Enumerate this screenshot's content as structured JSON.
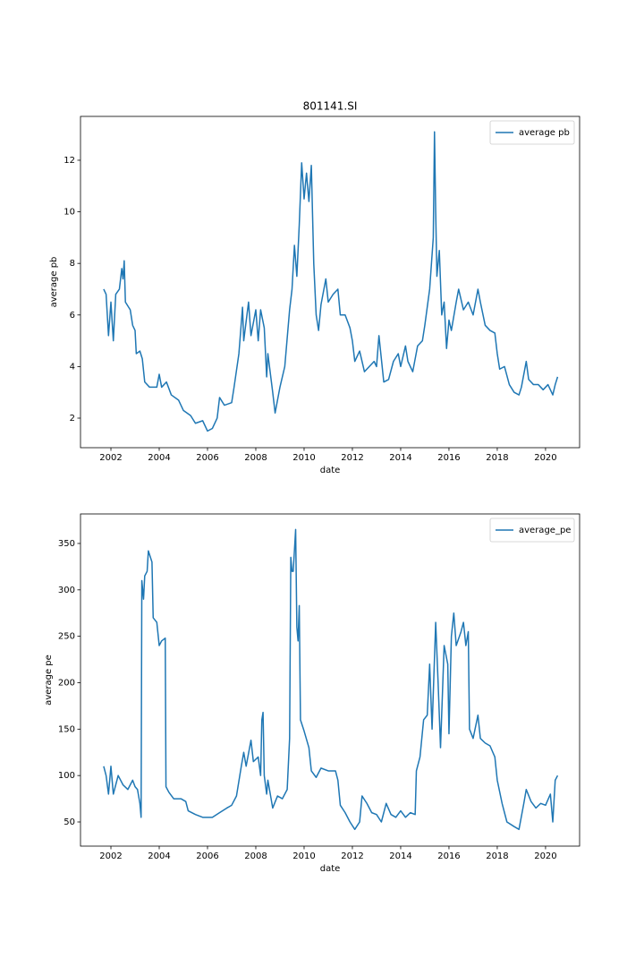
{
  "chart_data": [
    {
      "type": "line",
      "title": "801141.SI",
      "xlabel": "date",
      "ylabel": "average pb",
      "legend": "upper right",
      "x": [
        2001.7,
        2001.8,
        2001.9,
        2002.0,
        2002.1,
        2002.2,
        2002.35,
        2002.45,
        2002.5,
        2002.55,
        2002.6,
        2002.8,
        2002.9,
        2003.0,
        2003.05,
        2003.2,
        2003.3,
        2003.4,
        2003.6,
        2003.9,
        2004.0,
        2004.1,
        2004.3,
        2004.5,
        2004.8,
        2005.0,
        2005.3,
        2005.5,
        2005.8,
        2006.0,
        2006.2,
        2006.4,
        2006.5,
        2006.7,
        2007.0,
        2007.1,
        2007.3,
        2007.45,
        2007.5,
        2007.7,
        2007.8,
        2008.0,
        2008.1,
        2008.2,
        2008.35,
        2008.45,
        2008.5,
        2008.7,
        2008.8,
        2009.0,
        2009.2,
        2009.4,
        2009.5,
        2009.6,
        2009.7,
        2009.8,
        2009.9,
        2010.0,
        2010.1,
        2010.2,
        2010.3,
        2010.4,
        2010.5,
        2010.6,
        2010.7,
        2010.9,
        2011.0,
        2011.2,
        2011.4,
        2011.5,
        2011.7,
        2011.9,
        2012.0,
        2012.1,
        2012.3,
        2012.5,
        2012.7,
        2012.9,
        2013.0,
        2013.1,
        2013.3,
        2013.5,
        2013.7,
        2013.9,
        2014.0,
        2014.2,
        2014.3,
        2014.5,
        2014.7,
        2014.9,
        2015.0,
        2015.2,
        2015.35,
        2015.4,
        2015.45,
        2015.5,
        2015.6,
        2015.7,
        2015.8,
        2015.9,
        2016.0,
        2016.1,
        2016.3,
        2016.4,
        2016.6,
        2016.8,
        2017.0,
        2017.2,
        2017.3,
        2017.5,
        2017.7,
        2017.9,
        2018.0,
        2018.1,
        2018.3,
        2018.5,
        2018.7,
        2018.9,
        2019.0,
        2019.2,
        2019.3,
        2019.5,
        2019.7,
        2019.9,
        2020.1,
        2020.3,
        2020.4,
        2020.5
      ],
      "series": [
        {
          "name": "average pb",
          "color": "#1f77b4",
          "values": [
            7.0,
            6.8,
            5.2,
            6.5,
            5.0,
            6.8,
            7.0,
            7.8,
            7.4,
            8.1,
            6.5,
            6.2,
            5.6,
            5.4,
            4.5,
            4.6,
            4.3,
            3.4,
            3.2,
            3.2,
            3.7,
            3.2,
            3.4,
            2.9,
            2.7,
            2.3,
            2.1,
            1.8,
            1.9,
            1.5,
            1.6,
            2.0,
            2.8,
            2.5,
            2.6,
            3.2,
            4.5,
            6.3,
            5.0,
            6.5,
            5.2,
            6.2,
            5.0,
            6.2,
            5.5,
            3.6,
            4.5,
            3.0,
            2.2,
            3.2,
            4.0,
            6.2,
            7.0,
            8.7,
            7.5,
            9.5,
            11.9,
            10.5,
            11.5,
            10.4,
            11.8,
            8.0,
            6.0,
            5.4,
            6.4,
            7.4,
            6.5,
            6.8,
            7.0,
            6.0,
            6.0,
            5.5,
            5.0,
            4.2,
            4.6,
            3.8,
            4.0,
            4.2,
            4.0,
            5.2,
            3.4,
            3.5,
            4.2,
            4.5,
            4.0,
            4.8,
            4.2,
            3.8,
            4.8,
            5.0,
            5.6,
            7.0,
            9.0,
            13.1,
            10.0,
            7.5,
            8.5,
            6.0,
            6.5,
            4.7,
            5.8,
            5.4,
            6.5,
            7.0,
            6.2,
            6.5,
            6.0,
            7.0,
            6.5,
            5.6,
            5.4,
            5.3,
            4.5,
            3.9,
            4.0,
            3.3,
            3.0,
            2.9,
            3.2,
            4.2,
            3.5,
            3.3,
            3.3,
            3.1,
            3.3,
            2.9,
            3.3,
            3.6
          ]
        }
      ],
      "xlim": [
        2000.74,
        2021.41
      ],
      "ylim": [
        0.854,
        13.7
      ],
      "xticks": [
        2002,
        2004,
        2006,
        2008,
        2010,
        2012,
        2014,
        2016,
        2018,
        2020
      ],
      "yticks": [
        2,
        4,
        6,
        8,
        10,
        12
      ]
    },
    {
      "type": "line",
      "xlabel": "date",
      "ylabel": "average pe",
      "legend": "upper right",
      "x": [
        2001.7,
        2001.8,
        2001.9,
        2002.0,
        2002.1,
        2002.3,
        2002.5,
        2002.7,
        2002.9,
        2003.0,
        2003.1,
        2003.2,
        2003.25,
        2003.28,
        2003.35,
        2003.4,
        2003.5,
        2003.55,
        2003.7,
        2003.75,
        2003.9,
        2004.0,
        2004.1,
        2004.25,
        2004.28,
        2004.4,
        2004.6,
        2004.9,
        2005.1,
        2005.2,
        2005.5,
        2005.8,
        2006.2,
        2006.5,
        2006.8,
        2007.0,
        2007.2,
        2007.4,
        2007.5,
        2007.6,
        2007.8,
        2007.9,
        2008.1,
        2008.2,
        2008.25,
        2008.3,
        2008.35,
        2008.45,
        2008.5,
        2008.7,
        2008.9,
        2009.1,
        2009.3,
        2009.4,
        2009.45,
        2009.5,
        2009.55,
        2009.65,
        2009.7,
        2009.75,
        2009.8,
        2009.85,
        2010.0,
        2010.2,
        2010.3,
        2010.5,
        2010.7,
        2011.0,
        2011.3,
        2011.4,
        2011.5,
        2011.7,
        2011.9,
        2012.1,
        2012.3,
        2012.4,
        2012.6,
        2012.8,
        2013.0,
        2013.2,
        2013.4,
        2013.6,
        2013.8,
        2014.0,
        2014.2,
        2014.4,
        2014.6,
        2014.65,
        2014.8,
        2014.95,
        2015.1,
        2015.2,
        2015.3,
        2015.45,
        2015.55,
        2015.65,
        2015.8,
        2015.95,
        2016.0,
        2016.1,
        2016.2,
        2016.3,
        2016.5,
        2016.6,
        2016.7,
        2016.8,
        2016.85,
        2017.0,
        2017.2,
        2017.3,
        2017.5,
        2017.7,
        2017.9,
        2018.0,
        2018.2,
        2018.4,
        2018.7,
        2018.9,
        2019.1,
        2019.2,
        2019.4,
        2019.6,
        2019.8,
        2020.0,
        2020.2,
        2020.3,
        2020.4,
        2020.5
      ],
      "series": [
        {
          "name": "average_pe",
          "color": "#1f77b4",
          "values": [
            110,
            100,
            80,
            110,
            80,
            100,
            90,
            85,
            95,
            88,
            85,
            70,
            55,
            310,
            290,
            315,
            320,
            342,
            330,
            270,
            265,
            240,
            245,
            248,
            88,
            82,
            75,
            75,
            72,
            62,
            58,
            55,
            55,
            60,
            65,
            68,
            78,
            110,
            125,
            110,
            138,
            115,
            120,
            100,
            160,
            168,
            100,
            80,
            95,
            65,
            78,
            75,
            85,
            140,
            335,
            320,
            320,
            365,
            260,
            245,
            283,
            160,
            148,
            130,
            105,
            98,
            108,
            105,
            105,
            95,
            68,
            60,
            50,
            42,
            50,
            78,
            70,
            60,
            58,
            50,
            70,
            58,
            55,
            62,
            55,
            60,
            58,
            105,
            120,
            160,
            165,
            220,
            150,
            265,
            200,
            130,
            240,
            220,
            145,
            250,
            275,
            240,
            255,
            265,
            240,
            255,
            150,
            140,
            165,
            140,
            135,
            132,
            120,
            95,
            70,
            50,
            45,
            42,
            70,
            85,
            72,
            65,
            70,
            68,
            80,
            50,
            95,
            100
          ]
        }
      ],
      "xlim": [
        2000.74,
        2021.41
      ],
      "ylim": [
        23.96,
        381.8
      ],
      "xticks": [
        2002,
        2004,
        2006,
        2008,
        2010,
        2012,
        2014,
        2016,
        2018,
        2020
      ],
      "yticks": [
        50,
        100,
        150,
        200,
        250,
        300,
        350
      ]
    }
  ]
}
